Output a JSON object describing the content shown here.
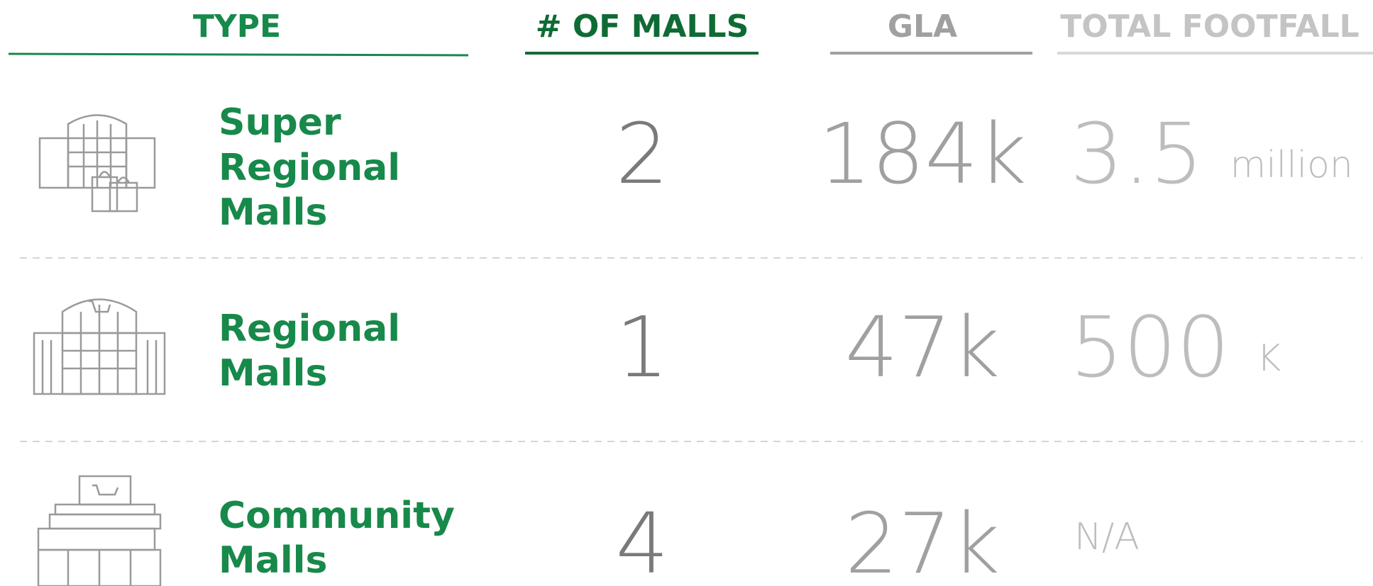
{
  "headers": [
    "TYPE",
    "# OF MALLS",
    "GLA",
    "TOTAL FOOTFALL"
  ],
  "rows": [
    {
      "type": [
        "Super",
        "Regional",
        "Malls"
      ],
      "count": "2",
      "gla": "184k",
      "footfall": "3.5",
      "unit": "million"
    },
    {
      "type": [
        "Regional",
        "Malls"
      ],
      "count": "1",
      "gla": "47k",
      "footfall": "500",
      "unit": "K"
    },
    {
      "type": [
        "Community",
        "Malls"
      ],
      "count": "4",
      "gla": "27k",
      "footfall": "N/A"
    }
  ]
}
